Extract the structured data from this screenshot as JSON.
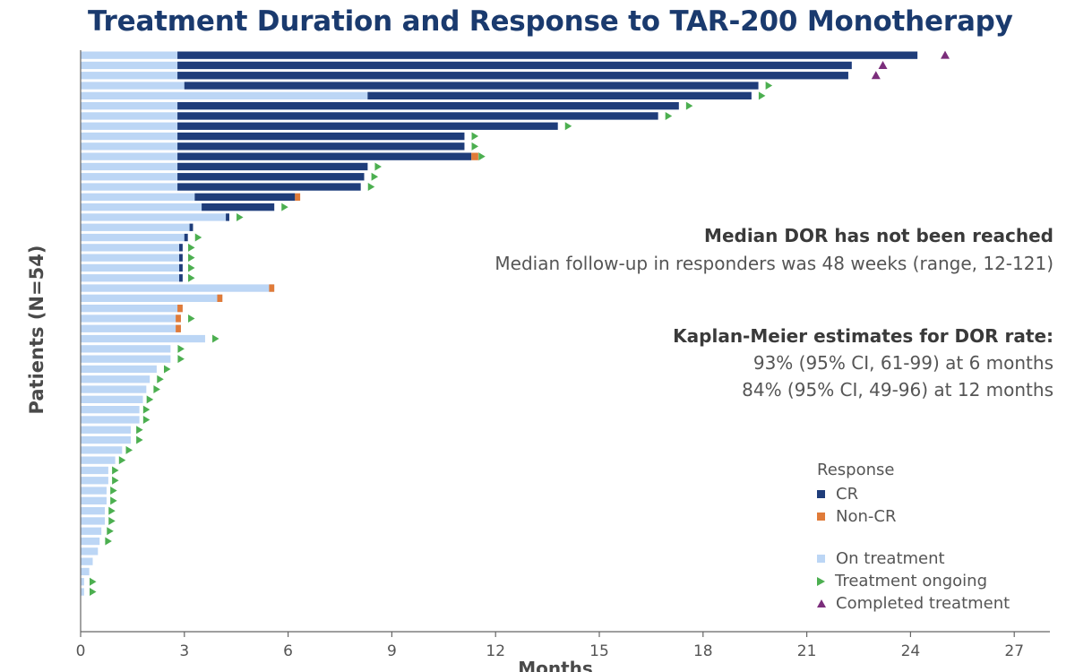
{
  "chart_data": {
    "type": "bar",
    "orientation": "horizontal",
    "title": "Treatment Duration and Response to TAR-200 Monotherapy",
    "xlabel": "Months",
    "ylabel": "Patients (N=54)",
    "xlim": [
      0,
      28
    ],
    "xticks": [
      "0",
      "3",
      "6",
      "9",
      "12",
      "15",
      "18",
      "21",
      "24",
      "27"
    ],
    "grid": false,
    "legend_position": "bottom-right",
    "legend": {
      "title": "Response",
      "items": [
        {
          "label": "CR",
          "kind": "square",
          "color": "#1f3d7a"
        },
        {
          "label": "Non-CR",
          "kind": "square",
          "color": "#e07b39"
        },
        {
          "label": "On treatment",
          "kind": "square",
          "color": "#bcd6f5"
        },
        {
          "label": "Treatment ongoing",
          "kind": "triangle-right",
          "color": "#4caf50"
        },
        {
          "label": "Completed treatment",
          "kind": "triangle-up",
          "color": "#7b2d7b"
        }
      ]
    },
    "colors": {
      "on_treatment": "#bcd6f5",
      "cr": "#1f3d7a",
      "non_cr": "#e07b39",
      "ongoing": "#4caf50",
      "completed": "#7b2d7b"
    },
    "annotations": {
      "dor_heading": "Median DOR has not been reached",
      "followup": "Median follow-up in responders was 48 weeks (range, 12-121)",
      "km_heading": "Kaplan-Meier estimates for DOR rate:",
      "km_6": "93% (95% CI, 61-99) at 6 months",
      "km_12": "84% (95% CI, 49-96) at 12 months"
    },
    "patients": [
      {
        "total": 24.2,
        "response_start": 2.8,
        "response": "CR",
        "marker": "completed",
        "marker_x": 25.0
      },
      {
        "total": 22.3,
        "response_start": 2.8,
        "response": "CR",
        "marker": "completed",
        "marker_x": 23.2
      },
      {
        "total": 22.2,
        "response_start": 2.8,
        "response": "CR",
        "marker": "completed",
        "marker_x": 23.0
      },
      {
        "total": 19.6,
        "response_start": 3.0,
        "response": "CR",
        "marker": "ongoing",
        "marker_x": 19.9
      },
      {
        "total": 19.4,
        "response_start": 8.3,
        "response": "CR",
        "marker": "ongoing",
        "marker_x": 19.7
      },
      {
        "total": 17.3,
        "response_start": 2.8,
        "response": "CR",
        "marker": "ongoing",
        "marker_x": 17.6
      },
      {
        "total": 16.7,
        "response_start": 2.8,
        "response": "CR",
        "marker": "ongoing",
        "marker_x": 17.0
      },
      {
        "total": 13.8,
        "response_start": 2.8,
        "response": "CR",
        "marker": "ongoing",
        "marker_x": 14.1
      },
      {
        "total": 11.1,
        "response_start": 2.8,
        "response": "CR",
        "marker": "ongoing",
        "marker_x": 11.4
      },
      {
        "total": 11.1,
        "response_start": 2.8,
        "response": "CR",
        "marker": "ongoing",
        "marker_x": 11.4
      },
      {
        "total": 11.3,
        "response_start": 2.8,
        "response": "CR",
        "noncr_end": 0.2,
        "marker": "ongoing",
        "marker_x": 11.6
      },
      {
        "total": 8.3,
        "response_start": 2.8,
        "response": "CR",
        "marker": "ongoing",
        "marker_x": 8.6
      },
      {
        "total": 8.2,
        "response_start": 2.8,
        "response": "CR",
        "marker": "ongoing",
        "marker_x": 8.5
      },
      {
        "total": 8.1,
        "response_start": 2.8,
        "response": "CR",
        "marker": "ongoing",
        "marker_x": 8.4
      },
      {
        "total": 6.2,
        "response_start": 3.3,
        "response": "CR",
        "noncr_end": 0.15,
        "marker": "none"
      },
      {
        "total": 5.6,
        "response_start": 3.5,
        "response": "CR",
        "marker": "ongoing",
        "marker_x": 5.9
      },
      {
        "total": 4.3,
        "response_start": 4.2,
        "response": "CR",
        "marker": "ongoing",
        "marker_x": 4.6
      },
      {
        "total": 3.25,
        "response_start": 3.15,
        "response": "CR",
        "marker": "none"
      },
      {
        "total": 3.1,
        "response_start": 3.0,
        "response": "CR",
        "marker": "ongoing",
        "marker_x": 3.4
      },
      {
        "total": 2.95,
        "response_start": 2.85,
        "response": "CR",
        "marker": "ongoing",
        "marker_x": 3.2
      },
      {
        "total": 2.95,
        "response_start": 2.85,
        "response": "CR",
        "marker": "ongoing",
        "marker_x": 3.2
      },
      {
        "total": 2.95,
        "response_start": 2.85,
        "response": "CR",
        "marker": "ongoing",
        "marker_x": 3.2
      },
      {
        "total": 2.95,
        "response_start": 2.85,
        "response": "CR",
        "marker": "ongoing",
        "marker_x": 3.2
      },
      {
        "total": 5.6,
        "response_start": 5.45,
        "response": "Non-CR",
        "marker": "none"
      },
      {
        "total": 4.1,
        "response_start": 3.95,
        "response": "Non-CR",
        "marker": "none"
      },
      {
        "total": 2.95,
        "response_start": 2.8,
        "response": "Non-CR",
        "marker": "none"
      },
      {
        "total": 2.9,
        "response_start": 2.75,
        "response": "Non-CR",
        "marker": "ongoing",
        "marker_x": 3.2
      },
      {
        "total": 2.9,
        "response_start": 2.75,
        "response": "Non-CR",
        "marker": "none"
      },
      {
        "total": 3.6,
        "response_start": null,
        "response": "None",
        "marker": "ongoing",
        "marker_x": 3.9
      },
      {
        "total": 2.6,
        "response_start": null,
        "response": "None",
        "marker": "ongoing",
        "marker_x": 2.9
      },
      {
        "total": 2.6,
        "response_start": null,
        "response": "None",
        "marker": "ongoing",
        "marker_x": 2.9
      },
      {
        "total": 2.2,
        "response_start": null,
        "response": "None",
        "marker": "ongoing",
        "marker_x": 2.5
      },
      {
        "total": 2.0,
        "response_start": null,
        "response": "None",
        "marker": "ongoing",
        "marker_x": 2.3
      },
      {
        "total": 1.9,
        "response_start": null,
        "response": "None",
        "marker": "ongoing",
        "marker_x": 2.2
      },
      {
        "total": 1.8,
        "response_start": null,
        "response": "None",
        "marker": "ongoing",
        "marker_x": 2.0
      },
      {
        "total": 1.7,
        "response_start": null,
        "response": "None",
        "marker": "ongoing",
        "marker_x": 1.9
      },
      {
        "total": 1.7,
        "response_start": null,
        "response": "None",
        "marker": "ongoing",
        "marker_x": 1.9
      },
      {
        "total": 1.45,
        "response_start": null,
        "response": "None",
        "marker": "ongoing",
        "marker_x": 1.7
      },
      {
        "total": 1.45,
        "response_start": null,
        "response": "None",
        "marker": "ongoing",
        "marker_x": 1.7
      },
      {
        "total": 1.2,
        "response_start": null,
        "response": "None",
        "marker": "ongoing",
        "marker_x": 1.4
      },
      {
        "total": 1.0,
        "response_start": null,
        "response": "None",
        "marker": "ongoing",
        "marker_x": 1.2
      },
      {
        "total": 0.8,
        "response_start": null,
        "response": "None",
        "marker": "ongoing",
        "marker_x": 1.0
      },
      {
        "total": 0.8,
        "response_start": null,
        "response": "None",
        "marker": "ongoing",
        "marker_x": 1.0
      },
      {
        "total": 0.75,
        "response_start": null,
        "response": "None",
        "marker": "ongoing",
        "marker_x": 0.95
      },
      {
        "total": 0.75,
        "response_start": null,
        "response": "None",
        "marker": "ongoing",
        "marker_x": 0.95
      },
      {
        "total": 0.7,
        "response_start": null,
        "response": "None",
        "marker": "ongoing",
        "marker_x": 0.9
      },
      {
        "total": 0.7,
        "response_start": null,
        "response": "None",
        "marker": "ongoing",
        "marker_x": 0.9
      },
      {
        "total": 0.6,
        "response_start": null,
        "response": "None",
        "marker": "ongoing",
        "marker_x": 0.85
      },
      {
        "total": 0.55,
        "response_start": null,
        "response": "None",
        "marker": "ongoing",
        "marker_x": 0.8
      },
      {
        "total": 0.5,
        "response_start": null,
        "response": "None",
        "marker": "none"
      },
      {
        "total": 0.35,
        "response_start": null,
        "response": "None",
        "marker": "none"
      },
      {
        "total": 0.25,
        "response_start": null,
        "response": "None",
        "marker": "none"
      },
      {
        "total": 0.1,
        "response_start": null,
        "response": "None",
        "marker": "ongoing",
        "marker_x": 0.35
      },
      {
        "total": 0.1,
        "response_start": null,
        "response": "None",
        "marker": "ongoing",
        "marker_x": 0.35
      }
    ]
  }
}
